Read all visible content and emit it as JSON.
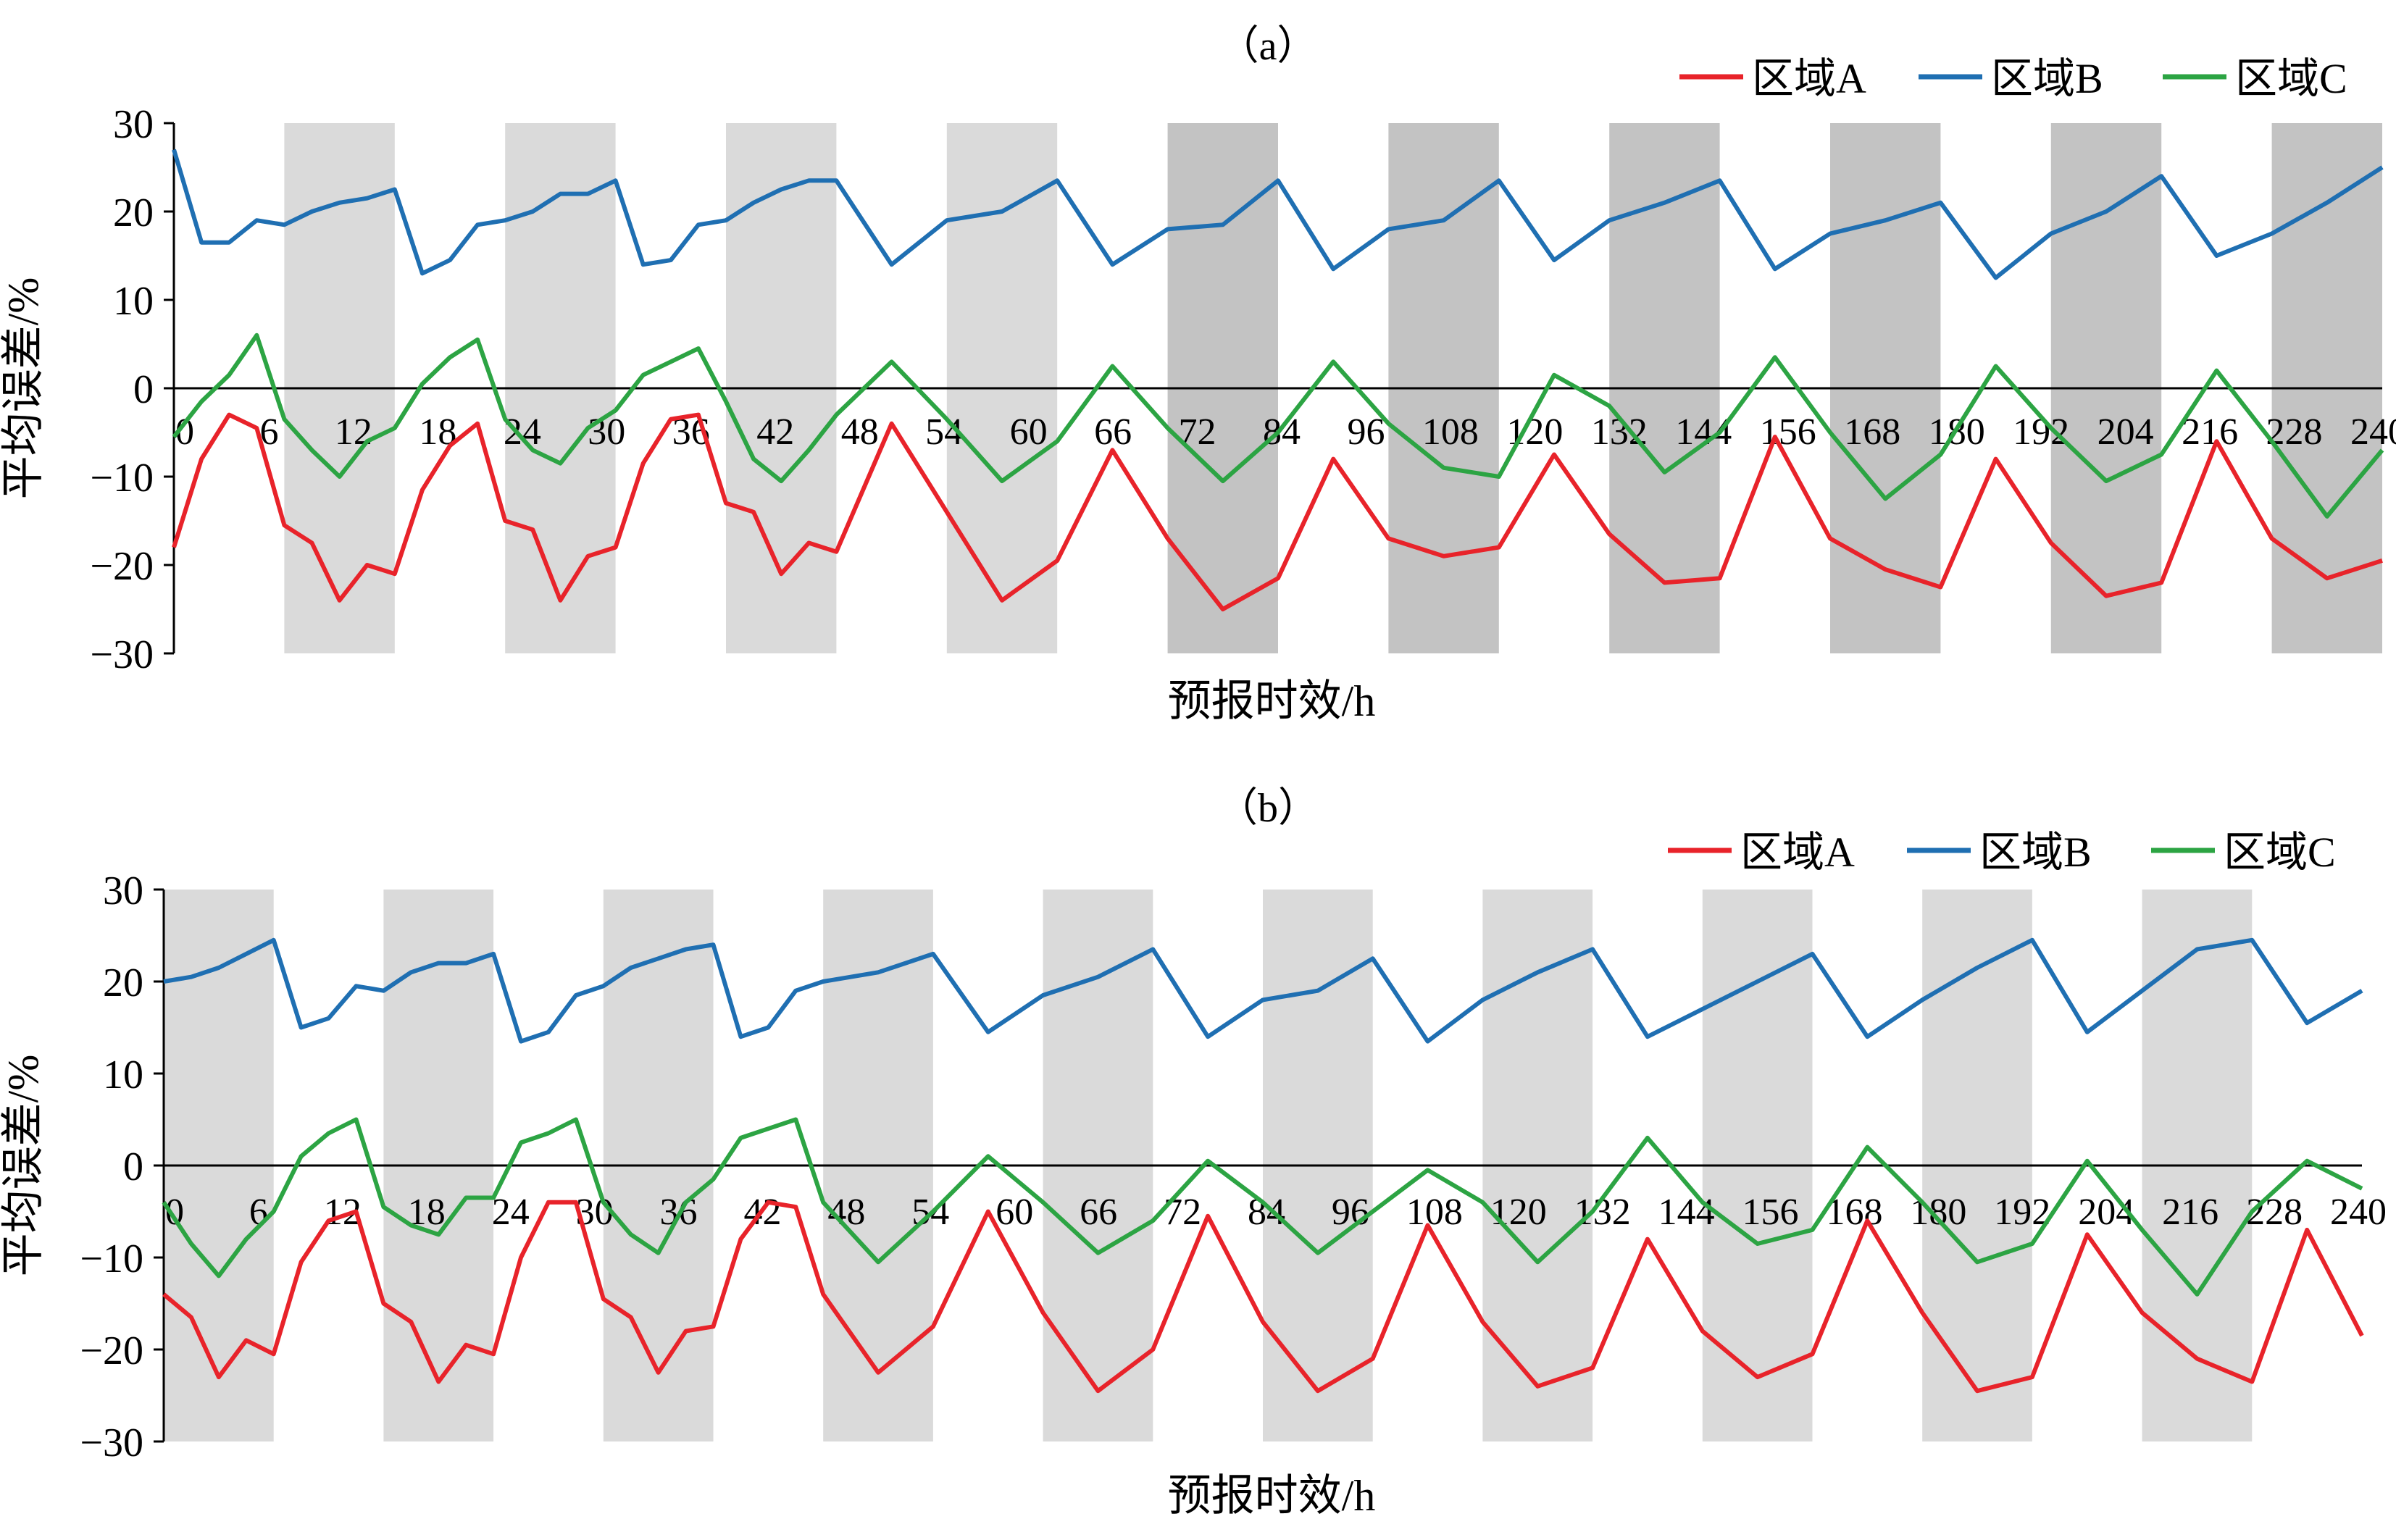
{
  "colors": {
    "region_a": "#e8232a",
    "region_b": "#1f6fb2",
    "region_c": "#2ca443",
    "shade_light": "#dadada",
    "shade_dark": "#c3c3c3",
    "axis": "#000000"
  },
  "legend_labels": [
    "区域A",
    "区域B",
    "区域C"
  ],
  "chart_data": [
    {
      "type": "line",
      "panel_label": "（a）",
      "xlabel": "预报时效/h",
      "ylabel": "平均误差/%",
      "ylim": [
        -30,
        30
      ],
      "yticks": [
        -30,
        -20,
        -10,
        0,
        10,
        20,
        30
      ],
      "xlim": [
        0,
        240
      ],
      "xticks": [
        0,
        6,
        12,
        18,
        24,
        30,
        36,
        42,
        48,
        54,
        60,
        66,
        72,
        84,
        96,
        108,
        120,
        132,
        144,
        156,
        168,
        180,
        192,
        204,
        216,
        228,
        240
      ],
      "legend_position": "top-right",
      "shaded_bands": [
        {
          "from": 12,
          "to": 24,
          "tone": "light"
        },
        {
          "from": 36,
          "to": 48,
          "tone": "light"
        },
        {
          "from": 60,
          "to": 72,
          "tone": "light"
        },
        {
          "from": 84,
          "to": 96,
          "tone": "light"
        },
        {
          "from": 108,
          "to": 120,
          "tone": "dark"
        },
        {
          "from": 132,
          "to": 144,
          "tone": "dark"
        },
        {
          "from": 156,
          "to": 168,
          "tone": "dark"
        },
        {
          "from": 180,
          "to": 192,
          "tone": "dark"
        },
        {
          "from": 204,
          "to": 216,
          "tone": "dark"
        },
        {
          "from": 228,
          "to": 240,
          "tone": "dark"
        }
      ],
      "x": [
        0,
        3,
        6,
        9,
        12,
        15,
        18,
        21,
        24,
        27,
        30,
        33,
        36,
        39,
        42,
        45,
        48,
        51,
        54,
        57,
        60,
        63,
        66,
        69,
        72,
        78,
        84,
        90,
        96,
        102,
        108,
        114,
        120,
        126,
        132,
        138,
        144,
        150,
        156,
        162,
        168,
        174,
        180,
        186,
        192,
        198,
        204,
        210,
        216,
        222,
        228,
        234,
        240
      ],
      "series": [
        {
          "name": "区域A",
          "values": [
            -18,
            -8,
            -3,
            -4.5,
            -15.5,
            -17.5,
            -24,
            -20,
            -21,
            -11.5,
            -6.5,
            -4,
            -15,
            -16,
            -24,
            -19,
            -18,
            -8.5,
            -3.5,
            -3,
            -13,
            -14,
            -21,
            -17.5,
            -18.5,
            -4,
            -14,
            -24,
            -19.5,
            -7,
            -17,
            -25,
            -21.5,
            -8,
            -17,
            -19,
            -18,
            -7.5,
            -16.5,
            -22,
            -21.5,
            -5.5,
            -17,
            -20.5,
            -22.5,
            -8,
            -17.5,
            -23.5,
            -22,
            -6,
            -17,
            -21.5,
            -19.5
          ]
        },
        {
          "name": "区域B",
          "values": [
            27,
            16.5,
            16.5,
            19,
            18.5,
            20,
            21,
            21.5,
            22.5,
            13,
            14.5,
            18.5,
            19,
            20,
            22,
            22,
            23.5,
            14,
            14.5,
            18.5,
            19,
            21,
            22.5,
            23.5,
            23.5,
            14,
            19,
            20,
            23.5,
            14,
            18,
            18.5,
            23.5,
            13.5,
            18,
            19,
            23.5,
            14.5,
            19,
            21,
            23.5,
            13.5,
            17.5,
            19,
            21,
            12.5,
            17.5,
            20,
            24,
            15,
            17.5,
            21,
            25
          ]
        },
        {
          "name": "区域C",
          "values": [
            -5.5,
            -1.5,
            1.5,
            6,
            -3.5,
            -7,
            -10,
            -6,
            -4.5,
            0.5,
            3.5,
            5.5,
            -3.5,
            -7,
            -8.5,
            -4.5,
            -2.5,
            1.5,
            3,
            4.5,
            -1.5,
            -8,
            -10.5,
            -7,
            -3,
            3,
            -3.5,
            -10.5,
            -6,
            2.5,
            -4.5,
            -10.5,
            -5,
            3,
            -4,
            -9,
            -10,
            1.5,
            -2,
            -9.5,
            -5,
            3.5,
            -5,
            -12.5,
            -7.5,
            2.5,
            -4.5,
            -10.5,
            -7.5,
            2,
            -6,
            -14.5,
            -7
          ]
        }
      ]
    },
    {
      "type": "line",
      "panel_label": "（b）",
      "xlabel": "预报时效/h",
      "ylabel": "平均误差/%",
      "ylim": [
        -30,
        30
      ],
      "yticks": [
        -30,
        -20,
        -10,
        0,
        10,
        20,
        30
      ],
      "xlim": [
        0,
        240
      ],
      "xticks": [
        0,
        6,
        12,
        18,
        24,
        30,
        36,
        42,
        48,
        54,
        60,
        66,
        72,
        84,
        96,
        108,
        120,
        132,
        144,
        156,
        168,
        180,
        192,
        204,
        216,
        228,
        240
      ],
      "legend_position": "top-right",
      "shaded_bands": [
        {
          "from": 0,
          "to": 12,
          "tone": "light"
        },
        {
          "from": 24,
          "to": 36,
          "tone": "light"
        },
        {
          "from": 48,
          "to": 60,
          "tone": "light"
        },
        {
          "from": 72,
          "to": 84,
          "tone": "light"
        },
        {
          "from": 96,
          "to": 108,
          "tone": "light"
        },
        {
          "from": 120,
          "to": 132,
          "tone": "light"
        },
        {
          "from": 144,
          "to": 156,
          "tone": "light"
        },
        {
          "from": 168,
          "to": 180,
          "tone": "light"
        },
        {
          "from": 192,
          "to": 204,
          "tone": "light"
        },
        {
          "from": 216,
          "to": 228,
          "tone": "light"
        }
      ],
      "x": [
        0,
        3,
        6,
        9,
        12,
        15,
        18,
        21,
        24,
        27,
        30,
        33,
        36,
        39,
        42,
        45,
        48,
        51,
        54,
        57,
        60,
        63,
        66,
        69,
        72,
        78,
        84,
        90,
        96,
        102,
        108,
        114,
        120,
        126,
        132,
        138,
        144,
        150,
        156,
        162,
        168,
        174,
        180,
        186,
        192,
        198,
        204,
        210,
        216,
        222,
        228,
        234,
        240
      ],
      "series": [
        {
          "name": "区域A",
          "values": [
            -14,
            -16.5,
            -23,
            -19,
            -20.5,
            -10.5,
            -6,
            -5,
            -15,
            -17,
            -23.5,
            -19.5,
            -20.5,
            -10,
            -4,
            -4,
            -14.5,
            -16.5,
            -22.5,
            -18,
            -17.5,
            -8,
            -4,
            -4.5,
            -14,
            -22.5,
            -17.5,
            -5,
            -16,
            -24.5,
            -20,
            -5.5,
            -17,
            -24.5,
            -21,
            -6.5,
            -17,
            -24,
            -22,
            -8,
            -18,
            -23,
            -20.5,
            -6,
            -16,
            -24.5,
            -23,
            -7.5,
            -16,
            -21,
            -23.5,
            -7,
            -18.5
          ]
        },
        {
          "name": "区域B",
          "values": [
            20,
            20.5,
            21.5,
            23,
            24.5,
            15,
            16,
            19.5,
            19,
            21,
            22,
            22,
            23,
            13.5,
            14.5,
            18.5,
            19.5,
            21.5,
            22.5,
            23.5,
            24,
            14,
            15,
            19,
            20,
            21,
            23,
            14.5,
            18.5,
            20.5,
            23.5,
            14,
            18,
            19,
            22.5,
            13.5,
            18,
            21,
            23.5,
            14,
            17,
            20,
            23,
            14,
            18,
            21.5,
            24.5,
            14.5,
            19,
            23.5,
            24.5,
            15.5,
            19
          ]
        },
        {
          "name": "区域C",
          "values": [
            -4,
            -8.5,
            -12,
            -8,
            -5,
            1,
            3.5,
            5,
            -4.5,
            -6.5,
            -7.5,
            -3.5,
            -3.5,
            2.5,
            3.5,
            5,
            -4,
            -7.5,
            -9.5,
            -4,
            -1.5,
            3,
            4,
            5,
            -4,
            -10.5,
            -5,
            1,
            -4,
            -9.5,
            -6,
            0.5,
            -4,
            -9.5,
            -5,
            -0.5,
            -4,
            -10.5,
            -5,
            3,
            -4,
            -8.5,
            -7,
            2,
            -4,
            -10.5,
            -8.5,
            0.5,
            -7,
            -14,
            -5,
            0.5,
            -2.5
          ]
        }
      ]
    }
  ]
}
